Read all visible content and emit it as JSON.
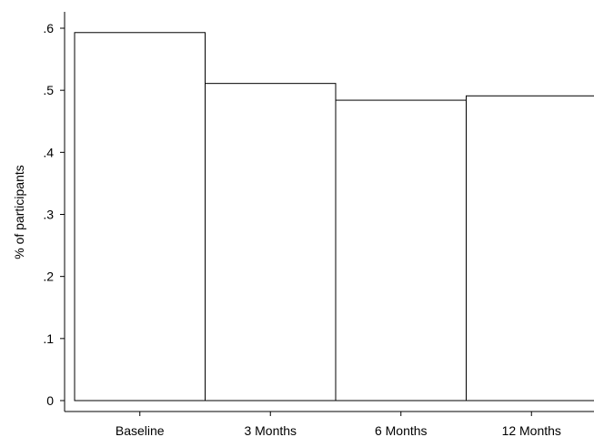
{
  "chart_data": {
    "type": "bar",
    "title": "",
    "xlabel": "",
    "ylabel": "% of participants",
    "categories": [
      "Baseline",
      "3 Months",
      "6 Months",
      "12 Months"
    ],
    "values": [
      0.593,
      0.511,
      0.484,
      0.491
    ],
    "ylim": [
      0,
      0.6
    ],
    "yticks": [
      {
        "value": 0,
        "label": "0"
      },
      {
        "value": 0.1,
        "label": ".1"
      },
      {
        "value": 0.2,
        "label": ".2"
      },
      {
        "value": 0.3,
        "label": ".3"
      },
      {
        "value": 0.4,
        "label": ".4"
      },
      {
        "value": 0.5,
        "label": ".5"
      },
      {
        "value": 0.6,
        "label": ".6"
      }
    ],
    "grid": false,
    "bar_fill": "#ffffff",
    "bar_stroke": "#000000"
  }
}
